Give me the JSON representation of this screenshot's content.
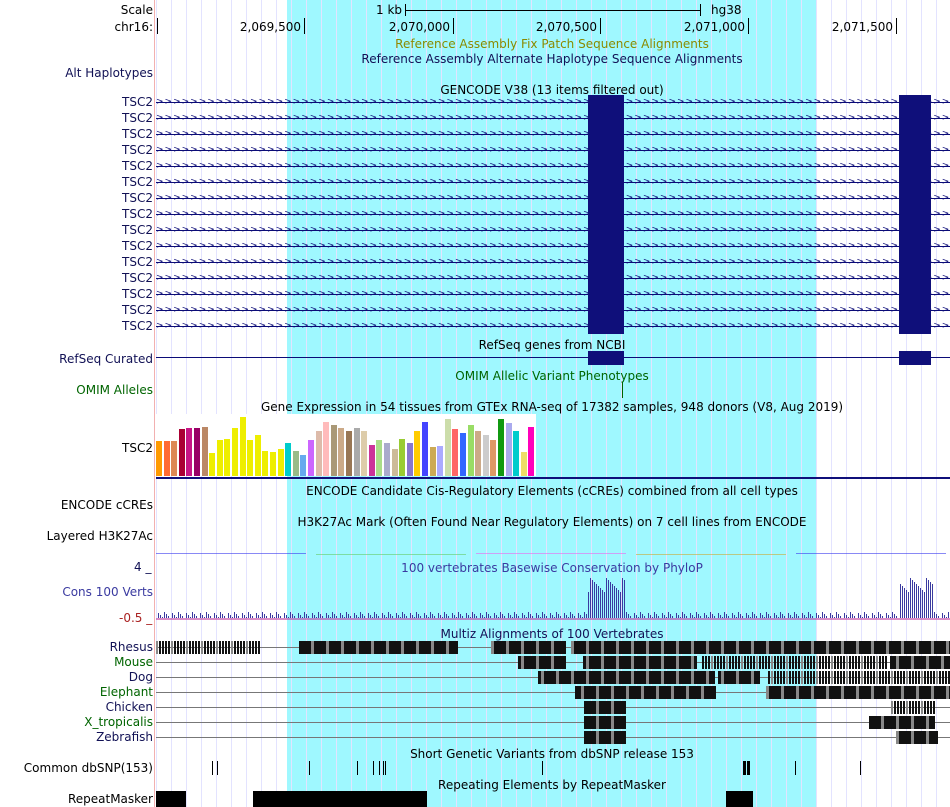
{
  "browser": {
    "scale": {
      "label": "Scale",
      "length_label": "1 kb",
      "assembly": "hg38"
    },
    "chrom": {
      "label": "chr16:",
      "ticks": [
        "2,069,500",
        "2,070,000",
        "2,070,500",
        "2,071,000",
        "2,071,500"
      ]
    },
    "tracks": {
      "fix_patch": "Reference Assembly Fix Patch Sequence Alignments",
      "alt_haplo_title": "Reference Assembly Alternate Haplotype Sequence Alignments",
      "alt_haplo_label": "Alt Haplotypes",
      "gencode_title": "GENCODE V38 (13 items filtered out)",
      "gencode_items": [
        "TSC2",
        "TSC2",
        "TSC2",
        "TSC2",
        "TSC2",
        "TSC2",
        "TSC2",
        "TSC2",
        "TSC2",
        "TSC2",
        "TSC2",
        "TSC2",
        "TSC2",
        "TSC2",
        "TSC2"
      ],
      "refseq_title": "RefSeq genes from NCBI",
      "refseq_label": "RefSeq Curated",
      "omim_title": "OMIM Allelic Variant Phenotypes",
      "omim_label": "OMIM Alleles",
      "gtex_title": "Gene Expression in 54 tissues from GTEx RNA-seq of 17382 samples, 948 donors (V8, Aug 2019)",
      "gtex_label": "TSC2",
      "encode_title": "ENCODE Candidate Cis-Regulatory Elements (cCREs) combined from all cell types",
      "encode_label": "ENCODE cCREs",
      "h3k27_title": "H3K27Ac Mark (Often Found Near Regulatory Elements) on 7 cell lines from ENCODE",
      "h3k27_label": "Layered H3K27Ac",
      "cons_title": "100 vertebrates Basewise Conservation by PhyloP",
      "cons_label": "Cons 100 Verts",
      "cons_max": "4 _",
      "cons_min": "-0.5 _",
      "multiz_title": "Multiz Alignments of 100 Vertebrates",
      "species": [
        "Rhesus",
        "Mouse",
        "Dog",
        "Elephant",
        "Chicken",
        "X_tropicalis",
        "Zebrafish"
      ],
      "snp_title": "Short Genetic Variants from dbSNP release 153",
      "snp_label": "Common dbSNP(153)",
      "rmsk_title": "Repeating Elements by RepeatMasker",
      "rmsk_label": "RepeatMasker"
    },
    "gtex_colors": [
      "#ff9900",
      "#ff6a33",
      "#dd8855",
      "#aa0033",
      "#c71585",
      "#990066",
      "#bb8866",
      "#eeee00",
      "#eeee00",
      "#eeee00",
      "#eeee00",
      "#eeee00",
      "#eeee00",
      "#eeee00",
      "#eeee00",
      "#eeee00",
      "#eeee00",
      "#00cccc",
      "#99bb88",
      "#66aaee",
      "#cc66ff",
      "#ddbbaa",
      "#ffbbbb",
      "#aa9977",
      "#ccaa88",
      "#997755",
      "#aaaaaa",
      "#ddccaa",
      "#cc3399",
      "#aadd88",
      "#aaaacc",
      "#ccbb99",
      "#99cc33",
      "#8877cc",
      "#ffcc00",
      "#4444ff",
      "#ccaa55",
      "#aaaaff",
      "#ccddaa",
      "#ff6666",
      "#3366ff",
      "#99dd66",
      "#ccaa88",
      "#cccccc",
      "#dd9966",
      "#119911",
      "#aaaaee",
      "#00cccc",
      "#eedd66",
      "#ff00bb"
    ],
    "gtex_values": [
      0.58,
      0.58,
      0.58,
      0.78,
      0.8,
      0.8,
      0.82,
      0.39,
      0.6,
      0.62,
      0.8,
      0.98,
      0.6,
      0.68,
      0.42,
      0.4,
      0.45,
      0.55,
      0.42,
      0.35,
      0.6,
      0.75,
      0.9,
      0.85,
      0.8,
      0.75,
      0.8,
      0.75,
      0.52,
      0.6,
      0.55,
      0.45,
      0.62,
      0.55,
      0.75,
      0.9,
      0.48,
      0.5,
      0.95,
      0.78,
      0.72,
      0.85,
      0.75,
      0.68,
      0.6,
      0.95,
      0.88,
      0.75,
      0.4,
      0.82
    ],
    "colors": {
      "highlight": "#9ff8ff",
      "exon": "#0f0f7a",
      "label_navy": "#111155",
      "label_green": "#006400",
      "fix_patch": "#8a8a00",
      "cons": "#3a3aa0"
    }
  }
}
